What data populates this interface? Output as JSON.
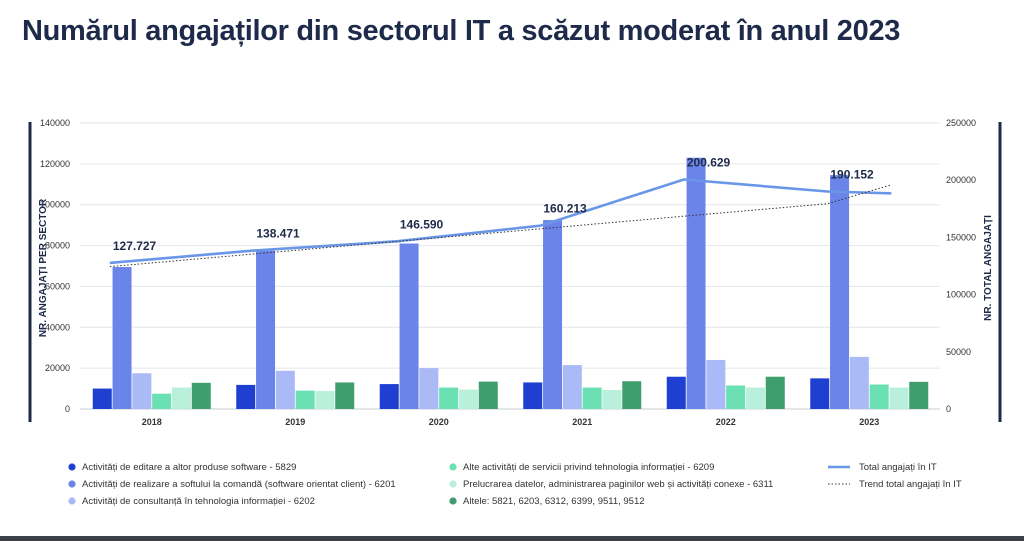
{
  "title": "Numărul angajaților din sectorul IT a scăzut moderat în anul 2023",
  "chart_data": {
    "type": "bar",
    "categories": [
      "2018",
      "2019",
      "2020",
      "2021",
      "2022",
      "2023"
    ],
    "left_axis": {
      "label": "NR. ANGAJAȚI PER SECTOR",
      "ylim": [
        0,
        140000
      ],
      "ticks": [
        "0",
        "20000",
        "40000",
        "60000",
        "80000",
        "100000",
        "120000",
        "140000"
      ]
    },
    "right_axis": {
      "label": "NR. TOTAL ANGAJAȚI",
      "ylim": [
        0,
        250000
      ],
      "ticks": [
        "0",
        "50000",
        "100000",
        "150000",
        "200000",
        "250000"
      ]
    },
    "series": [
      {
        "name": "Activități de editare a altor produse software - 5829",
        "color": "#1f3fd1",
        "values": [
          10000,
          11800,
          12200,
          13000,
          15800,
          15000
        ]
      },
      {
        "name": "Activități de realizare a softului la comandă (software orientat client) - 6201",
        "color": "#6b84ea",
        "values": [
          69500,
          77500,
          81000,
          92500,
          123000,
          114500
        ]
      },
      {
        "name": "Activități de consultanță în tehnologia informației - 6202",
        "color": "#a9baf6",
        "values": [
          17500,
          18700,
          20000,
          21500,
          24000,
          25500
        ]
      },
      {
        "name": "Alte activități de servicii privind tehnologia informației - 6209",
        "color": "#6be0b3",
        "values": [
          7500,
          9000,
          10500,
          10500,
          11500,
          12000
        ]
      },
      {
        "name": "Prelucrarea datelor, administrarea paginilor web și activități conexe - 6311",
        "color": "#b9f0dc",
        "values": [
          10500,
          8800,
          9500,
          9300,
          10500,
          10500
        ]
      },
      {
        "name": "Altele: 5821, 6203, 6312, 6399, 9511, 9512",
        "color": "#3f9e6e",
        "values": [
          12800,
          13000,
          13400,
          13600,
          15800,
          13300
        ]
      }
    ],
    "lines": [
      {
        "name": "Total angajați în IT",
        "style": "solid",
        "color": "#6a96e8",
        "axis": "right",
        "values": [
          127727,
          138471,
          146590,
          160213,
          200629,
          190152
        ],
        "end_value": 188500
      },
      {
        "name": "Trend total angajați în IT",
        "style": "dotted",
        "color": "#333333",
        "axis": "right",
        "values": [
          124500,
          135500,
          146500,
          157500,
          168500,
          179500
        ],
        "end_value": 196000
      }
    ],
    "data_labels": [
      "127.727",
      "138.471",
      "146.590",
      "160.213",
      "200.629",
      "190.152"
    ]
  }
}
